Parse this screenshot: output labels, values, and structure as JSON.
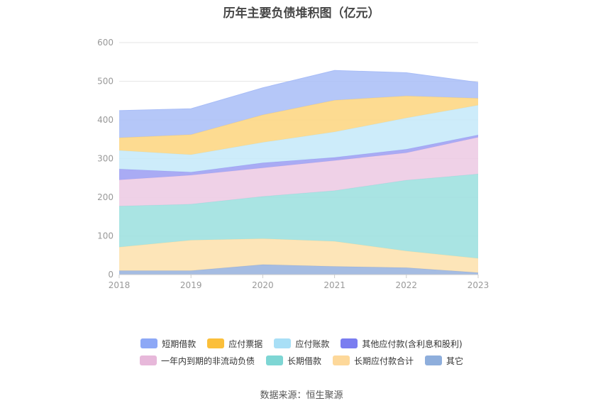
{
  "title": "历年主要负债堆积图（亿元）",
  "source": "数据来源：恒生聚源",
  "chart_data": {
    "type": "area",
    "stacked": true,
    "x": [
      "2018",
      "2019",
      "2020",
      "2021",
      "2022",
      "2023"
    ],
    "ylim": [
      0,
      600
    ],
    "yticks": [
      0,
      100,
      200,
      300,
      400,
      500,
      600
    ],
    "grid": true,
    "legend_position": "bottom",
    "series": [
      {
        "name": "其它",
        "color": "#95b0dd",
        "values": [
          10,
          10,
          26,
          21,
          18,
          5
        ]
      },
      {
        "name": "长期应付款合计",
        "color": "#fde1ab",
        "values": [
          61,
          79,
          67,
          65,
          43,
          37
        ]
      },
      {
        "name": "长期借款",
        "color": "#9adfde",
        "values": [
          106,
          93,
          109,
          131,
          183,
          218
        ]
      },
      {
        "name": "一年内到期的非流动负债",
        "color": "#ecc9e3",
        "values": [
          68,
          75,
          74,
          78,
          71,
          95
        ]
      },
      {
        "name": "其他应付款(含利息和股利)",
        "color": "#9a9cf2",
        "values": [
          28,
          8,
          13,
          8,
          9,
          6
        ]
      },
      {
        "name": "应付账款",
        "color": "#c4e9f9",
        "values": [
          48,
          45,
          53,
          66,
          81,
          77
        ]
      },
      {
        "name": "应付票据",
        "color": "#fdd57e",
        "values": [
          33,
          52,
          71,
          82,
          57,
          18
        ]
      },
      {
        "name": "短期借款",
        "color": "#a8bdf7",
        "values": [
          70,
          67,
          70,
          77,
          60,
          41
        ]
      }
    ]
  },
  "legend": {
    "rows": [
      [
        {
          "name": "短期借款",
          "color": "#8da8f6"
        },
        {
          "name": "应付票据",
          "color": "#fbbf3a"
        },
        {
          "name": "应付账款",
          "color": "#a8dff6"
        },
        {
          "name": "其他应付款(含利息和股利)",
          "color": "#7a7df0"
        }
      ],
      [
        {
          "name": "一年内到期的非流动负债",
          "color": "#e7b8da"
        },
        {
          "name": "长期借款",
          "color": "#7ed6d4"
        },
        {
          "name": "长期应付款合计",
          "color": "#fdd89a"
        },
        {
          "name": "其它",
          "color": "#8eaedc"
        }
      ]
    ]
  }
}
